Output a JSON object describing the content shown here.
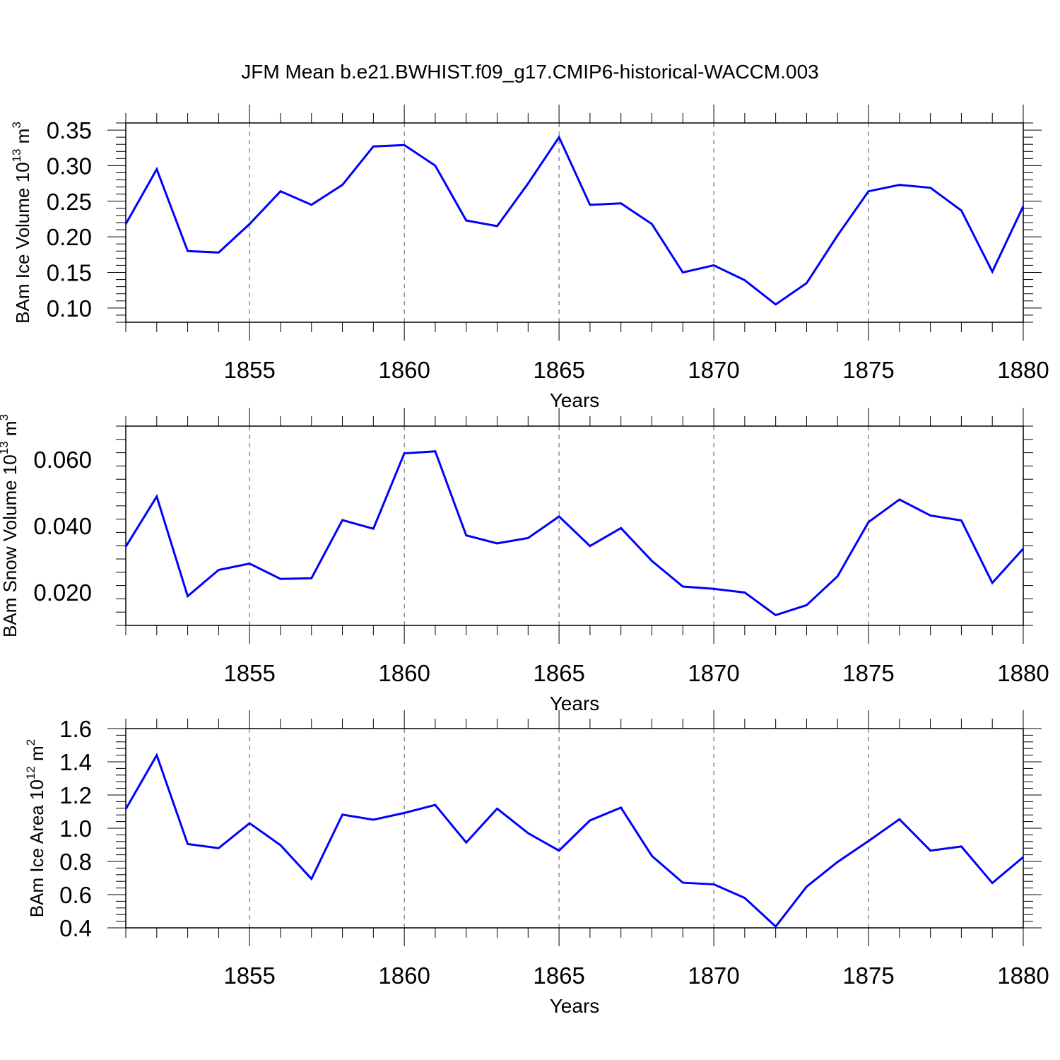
{
  "title": "JFM Mean b.e21.BWHIST.f09_g17.CMIP6-historical-WACCM.003",
  "chart_data": [
    {
      "type": "line",
      "title": "",
      "xlabel": "Years",
      "ylabel": {
        "text": "BAm Ice Volume 10",
        "exp": "13",
        "unit": " m",
        "unit_exp": "3"
      },
      "xlim": [
        1851,
        1880
      ],
      "ylim": [
        0.08,
        0.36
      ],
      "xticks": [
        "1855",
        "1860",
        "1865",
        "1870",
        "1875",
        "1880"
      ],
      "yticks": [
        "0.10",
        "0.15",
        "0.20",
        "0.25",
        "0.30",
        "0.35"
      ],
      "grid": "vertical dashed at labeled years",
      "color": "#0000ff",
      "x": [
        1851,
        1852,
        1853,
        1854,
        1855,
        1856,
        1857,
        1858,
        1859,
        1860,
        1861,
        1862,
        1863,
        1864,
        1865,
        1866,
        1867,
        1868,
        1869,
        1870,
        1871,
        1872,
        1873,
        1874,
        1875,
        1876,
        1877,
        1878,
        1879,
        1880
      ],
      "values": [
        0.218,
        0.295,
        0.18,
        0.178,
        0.218,
        0.264,
        0.245,
        0.273,
        0.327,
        0.329,
        0.3,
        0.223,
        0.215,
        0.275,
        0.34,
        0.245,
        0.247,
        0.218,
        0.15,
        0.16,
        0.139,
        0.105,
        0.135,
        0.202,
        0.264,
        0.273,
        0.269,
        0.237,
        0.151,
        0.243
      ]
    },
    {
      "type": "line",
      "title": "",
      "xlabel": "Years",
      "ylabel": {
        "text": "BAm Snow Volume 10",
        "exp": "13",
        "unit": " m",
        "unit_exp": "3"
      },
      "xlim": [
        1851,
        1880
      ],
      "ylim": [
        0.01,
        0.07
      ],
      "xticks": [
        "1855",
        "1860",
        "1865",
        "1870",
        "1875",
        "1880"
      ],
      "yticks": [
        "0.020",
        "0.040",
        "0.060"
      ],
      "grid": "vertical dashed at labeled years",
      "color": "#0000ff",
      "x": [
        1851,
        1852,
        1853,
        1854,
        1855,
        1856,
        1857,
        1858,
        1859,
        1860,
        1861,
        1862,
        1863,
        1864,
        1865,
        1866,
        1867,
        1868,
        1869,
        1870,
        1871,
        1872,
        1873,
        1874,
        1875,
        1876,
        1877,
        1878,
        1879,
        1880
      ],
      "values": [
        0.0337,
        0.0488,
        0.0188,
        0.0267,
        0.0286,
        0.024,
        0.0242,
        0.0417,
        0.0391,
        0.0618,
        0.0624,
        0.0371,
        0.0347,
        0.0363,
        0.0428,
        0.0339,
        0.0393,
        0.0294,
        0.0217,
        0.021,
        0.0199,
        0.0131,
        0.0161,
        0.0248,
        0.0411,
        0.0479,
        0.0431,
        0.0416,
        0.0228,
        0.0331
      ]
    },
    {
      "type": "line",
      "title": "",
      "xlabel": "Years",
      "ylabel": {
        "text": "BAm Ice Area 10",
        "exp": "12",
        "unit": " m",
        "unit_exp": "2"
      },
      "xlim": [
        1851,
        1880
      ],
      "ylim": [
        0.4,
        1.6
      ],
      "xticks": [
        "1855",
        "1860",
        "1865",
        "1870",
        "1875",
        "1880"
      ],
      "yticks": [
        "0.4",
        "0.6",
        "0.8",
        "1.0",
        "1.2",
        "1.4",
        "1.6"
      ],
      "grid": "vertical dashed at labeled years",
      "color": "#0000ff",
      "x": [
        1851,
        1852,
        1853,
        1854,
        1855,
        1856,
        1857,
        1858,
        1859,
        1860,
        1861,
        1862,
        1863,
        1864,
        1865,
        1866,
        1867,
        1868,
        1869,
        1870,
        1871,
        1872,
        1873,
        1874,
        1875,
        1876,
        1877,
        1878,
        1879,
        1880
      ],
      "values": [
        1.115,
        1.44,
        0.905,
        0.88,
        1.03,
        0.898,
        0.695,
        1.082,
        1.051,
        1.092,
        1.14,
        0.914,
        1.118,
        0.97,
        0.865,
        1.047,
        1.124,
        0.833,
        0.672,
        0.662,
        0.58,
        0.408,
        0.648,
        0.797,
        0.923,
        1.054,
        0.865,
        0.89,
        0.67,
        0.826
      ]
    }
  ]
}
